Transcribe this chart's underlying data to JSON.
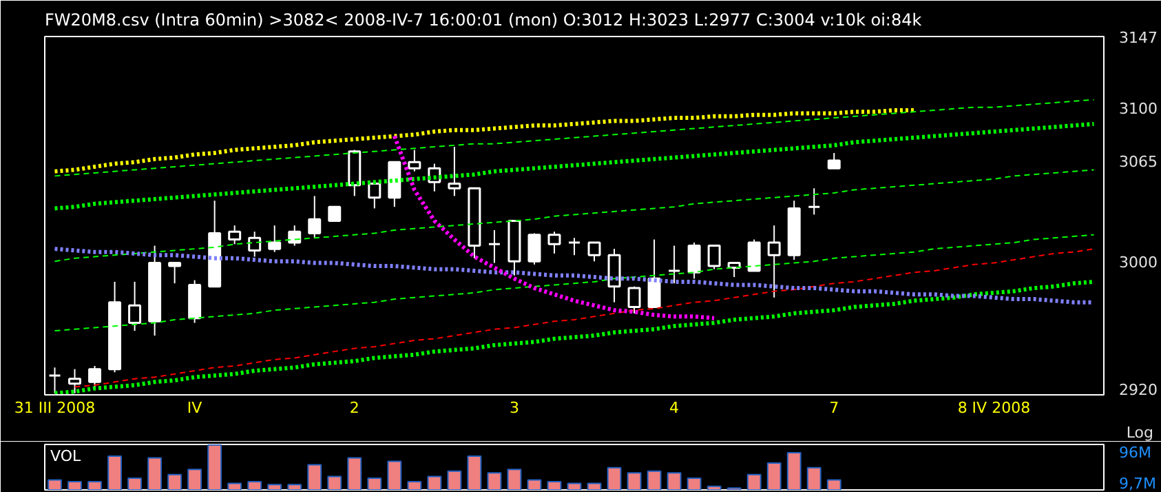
{
  "chart_data": [
    {
      "type": "candlestick",
      "title": "FW20M8.csv   (Intra 60min)   >3082<  2008-IV-7 16:00:01 (mon)      O:3012 H:3023 L:2977 C:3004 v:10k oi:84k",
      "color": "#ffffff",
      "log": true,
      "grid": false,
      "categories": [
        "31 III 2008",
        null,
        null,
        null,
        null,
        null,
        null,
        "IV",
        null,
        null,
        null,
        null,
        null,
        null,
        null,
        "2",
        null,
        null,
        null,
        null,
        null,
        null,
        null,
        "3",
        null,
        null,
        null,
        null,
        null,
        null,
        null,
        "4",
        null,
        null,
        null,
        null,
        null,
        null,
        null,
        "7",
        null,
        null,
        null,
        null,
        null,
        null,
        null,
        "8 IV 2008",
        null,
        null,
        null,
        null,
        null
      ],
      "ohlc": [
        [
          2928,
          2933,
          2917,
          2928
        ],
        [
          2926,
          2932,
          2917,
          2923
        ],
        [
          2924,
          2934,
          2921,
          2932
        ],
        [
          2932,
          2987,
          2930,
          2974
        ],
        [
          2972,
          2987,
          2956,
          2961
        ],
        [
          2962,
          3010,
          2953,
          2999
        ],
        [
          2997,
          2999,
          2986,
          2999
        ],
        [
          2964,
          2988,
          2961,
          2985
        ],
        [
          2984,
          3039,
          2984,
          3018
        ],
        [
          3019,
          3023,
          3011,
          3014
        ],
        [
          3015,
          3019,
          3003,
          3007
        ],
        [
          3008,
          3023,
          3006,
          3012
        ],
        [
          3012,
          3023,
          3010,
          3019
        ],
        [
          3018,
          3042,
          3015,
          3027
        ],
        [
          3026,
          3035,
          3026,
          3035
        ],
        [
          3071,
          3072,
          3042,
          3049
        ],
        [
          3050,
          3050,
          3034,
          3041
        ],
        [
          3041,
          3064,
          3035,
          3064
        ],
        [
          3064,
          3072,
          3058,
          3060
        ],
        [
          3060,
          3063,
          3045,
          3051
        ],
        [
          3050,
          3074,
          3042,
          3047
        ],
        [
          3047,
          3047,
          3002,
          3010
        ],
        [
          3011,
          3020,
          2999,
          3011
        ],
        [
          3026,
          3026,
          2991,
          3000
        ],
        [
          3000,
          3018,
          2998,
          3017
        ],
        [
          3017,
          3019,
          3005,
          3011
        ],
        [
          3012,
          3015,
          3004,
          3012
        ],
        [
          3012,
          3012,
          3000,
          3004
        ],
        [
          3004,
          3008,
          2974,
          2984
        ],
        [
          2983,
          2984,
          2967,
          2971
        ],
        [
          2971,
          3014,
          2971,
          2989
        ],
        [
          2994,
          3010,
          2986,
          2994
        ],
        [
          2993,
          3012,
          2989,
          3010
        ],
        [
          3010,
          3010,
          2995,
          2997
        ],
        [
          2999,
          2999,
          2990,
          2996
        ],
        [
          2994,
          3014,
          2994,
          3012
        ],
        [
          3012,
          3023,
          2977,
          3004
        ],
        [
          3004,
          3039,
          3001,
          3034
        ],
        [
          3035,
          3047,
          3030,
          3035
        ],
        [
          3060,
          3070,
          3060,
          3065
        ],
        null,
        null,
        null,
        null,
        null,
        null,
        null,
        null,
        null,
        null,
        null,
        null,
        null
      ],
      "ylim": [
        2916,
        3147
      ],
      "yticks": [
        2920,
        3000,
        3065,
        3100,
        3147
      ],
      "annotations": [
        "Log"
      ],
      "series": [
        {
          "type": "line",
          "color": "#ffff00",
          "line_style": "dotted",
          "values": [
            3058,
            3059,
            3061,
            3063,
            3064,
            3066,
            3067,
            3069,
            3070,
            3072,
            3073,
            3074,
            3075,
            3077,
            3078,
            3079,
            3080,
            3081,
            3082,
            3084,
            3085,
            3085,
            3086,
            3087,
            3088,
            3088,
            3089,
            3090,
            3091,
            3091,
            3092,
            3093,
            3093,
            3094,
            3094,
            3095,
            3095,
            3096,
            3096,
            3096,
            3097,
            3097,
            3098,
            3098,
            null,
            null,
            null,
            null,
            null,
            null,
            null,
            null,
            null
          ]
        },
        {
          "type": "line",
          "color": "#00ff00",
          "line_style": "dashed",
          "values": [
            3055,
            3056,
            3057,
            3058,
            3059,
            3060,
            3061,
            3062,
            3063,
            3064,
            3065,
            3066,
            3067,
            3068,
            3069,
            3070,
            3071,
            3072,
            3073,
            3074,
            3075,
            3076,
            3076,
            3077,
            3078,
            3079,
            3080,
            3081,
            3082,
            3083,
            3084,
            3085,
            3086,
            3087,
            3088,
            3089,
            3090,
            3091,
            3092,
            3093,
            3094,
            3095,
            3096,
            3097,
            3098,
            3099,
            3100,
            3100,
            3101,
            3102,
            3103,
            3104,
            3105
          ]
        },
        {
          "type": "line",
          "color": "#00ff00",
          "line_style": "dotted",
          "values": [
            3034,
            3035,
            3037,
            3038,
            3039,
            3040,
            3041,
            3042,
            3043,
            3044,
            3045,
            3046,
            3047,
            3048,
            3049,
            3050,
            3051,
            3052,
            3053,
            3054,
            3055,
            3056,
            3058,
            3059,
            3060,
            3061,
            3062,
            3063,
            3064,
            3065,
            3066,
            3067,
            3068,
            3069,
            3070,
            3071,
            3072,
            3073,
            3074,
            3075,
            3077,
            3078,
            3079,
            3080,
            3081,
            3082,
            3083,
            3084,
            3085,
            3086,
            3087,
            3088,
            3089
          ]
        },
        {
          "type": "line",
          "color": "#00ff00",
          "line_style": "dashed",
          "values": [
            3000,
            3002,
            3003,
            3004,
            3005,
            3006,
            3007,
            3008,
            3009,
            3011,
            3012,
            3013,
            3014,
            3015,
            3016,
            3017,
            3018,
            3020,
            3021,
            3022,
            3023,
            3024,
            3025,
            3026,
            3027,
            3029,
            3030,
            3031,
            3032,
            3033,
            3034,
            3035,
            3037,
            3038,
            3039,
            3040,
            3041,
            3042,
            3043,
            3044,
            3046,
            3047,
            3048,
            3049,
            3050,
            3051,
            3052,
            3053,
            3055,
            3056,
            3057,
            3058,
            3059
          ]
        },
        {
          "type": "line",
          "color": "#00ff00",
          "line_style": "dashed",
          "values": [
            2956,
            2957,
            2958,
            2959,
            2960,
            2961,
            2963,
            2964,
            2965,
            2966,
            2967,
            2969,
            2970,
            2971,
            2972,
            2973,
            2974,
            2976,
            2977,
            2978,
            2979,
            2980,
            2982,
            2983,
            2984,
            2985,
            2986,
            2987,
            2989,
            2990,
            2991,
            2992,
            2993,
            2995,
            2996,
            2997,
            2998,
            2999,
            3000,
            3002,
            3003,
            3004,
            3005,
            3006,
            3008,
            3009,
            3010,
            3011,
            3012,
            3014,
            3015,
            3016,
            3017
          ]
        },
        {
          "type": "line",
          "color": "#00ff00",
          "line_style": "dotted",
          "values": [
            2917,
            2918,
            2920,
            2921,
            2922,
            2924,
            2925,
            2927,
            2928,
            2929,
            2931,
            2932,
            2933,
            2935,
            2936,
            2937,
            2939,
            2940,
            2941,
            2943,
            2944,
            2945,
            2947,
            2948,
            2949,
            2951,
            2952,
            2953,
            2955,
            2956,
            2957,
            2959,
            2960,
            2961,
            2963,
            2964,
            2965,
            2967,
            2968,
            2969,
            2971,
            2972,
            2973,
            2975,
            2976,
            2977,
            2979,
            2980,
            2981,
            2983,
            2984,
            2986,
            2987
          ]
        },
        {
          "type": "line",
          "color": "#ff0000",
          "line_style": "dashed",
          "values": [
            null,
            2921,
            2922,
            2924,
            2926,
            2927,
            2929,
            2931,
            2933,
            2934,
            2936,
            2938,
            2939,
            2941,
            2943,
            2945,
            2946,
            2948,
            2950,
            2951,
            2953,
            2955,
            2957,
            2958,
            2960,
            2962,
            2963,
            2965,
            2967,
            2969,
            2970,
            2972,
            2974,
            2975,
            2977,
            2979,
            2981,
            2982,
            2984,
            2986,
            2987,
            2989,
            2991,
            2993,
            2994,
            2996,
            2998,
            2999,
            3001,
            3003,
            3005,
            3006,
            3008
          ]
        },
        {
          "type": "line",
          "color": "#8080ff",
          "line_style": "dotted",
          "values": [
            3008,
            3007,
            3006,
            3006,
            3005,
            3004,
            3004,
            3003,
            3002,
            3002,
            3001,
            3000,
            3000,
            2999,
            2999,
            2998,
            2997,
            2997,
            2996,
            2995,
            2995,
            2994,
            2993,
            2993,
            2992,
            2991,
            2991,
            2990,
            2989,
            2989,
            2988,
            2987,
            2987,
            2986,
            2985,
            2985,
            2984,
            2983,
            2983,
            2982,
            2981,
            2981,
            2980,
            2979,
            2979,
            2978,
            2978,
            2977,
            2976,
            2976,
            2975,
            2974,
            2974
          ]
        },
        {
          "type": "line",
          "color": "#ff00ff",
          "line_style": "dotted",
          "values": [
            null,
            null,
            null,
            null,
            null,
            null,
            null,
            null,
            null,
            null,
            null,
            null,
            null,
            null,
            null,
            null,
            null,
            3081,
            3046,
            3026,
            3014,
            3003,
            2996,
            2989,
            2983,
            2979,
            2975,
            2972,
            2969,
            2968,
            2966,
            2965,
            2965,
            2964,
            null,
            null,
            null,
            null,
            null,
            null,
            null,
            null,
            null,
            null,
            null,
            null,
            null,
            null,
            null,
            null,
            null,
            null,
            null
          ]
        }
      ]
    },
    {
      "type": "bar",
      "title": "VOL",
      "color": "#f08080",
      "categories": [
        null,
        null,
        null,
        null,
        null,
        null,
        null,
        null,
        null,
        null,
        null,
        null,
        null,
        null,
        null,
        null,
        null,
        null,
        null,
        null,
        null,
        null,
        null,
        null,
        null,
        null,
        null,
        null,
        null,
        null,
        null,
        null,
        null,
        null,
        null,
        null,
        null,
        null,
        null,
        null,
        null,
        null,
        null,
        null,
        null,
        null,
        null,
        null,
        null,
        null,
        null,
        null,
        null
      ],
      "values": [
        33,
        29,
        29,
        88,
        37,
        84,
        45,
        57,
        114,
        25,
        29,
        22,
        22,
        68,
        41,
        84,
        37,
        76,
        29,
        41,
        53,
        88,
        49,
        57,
        33,
        29,
        25,
        25,
        61,
        49,
        53,
        49,
        37,
        18,
        14,
        45,
        72,
        96,
        61,
        33,
        null,
        null,
        null,
        null,
        null,
        null,
        null,
        null,
        null,
        null,
        null,
        null,
        null
      ],
      "ylim": [
        9.7,
        115
      ],
      "yticks": [
        {
          "value": 9.7,
          "label": "9,7M"
        },
        {
          "value": 96,
          "label": "96M"
        }
      ],
      "tick_labels": "y",
      "grid": false
    }
  ]
}
